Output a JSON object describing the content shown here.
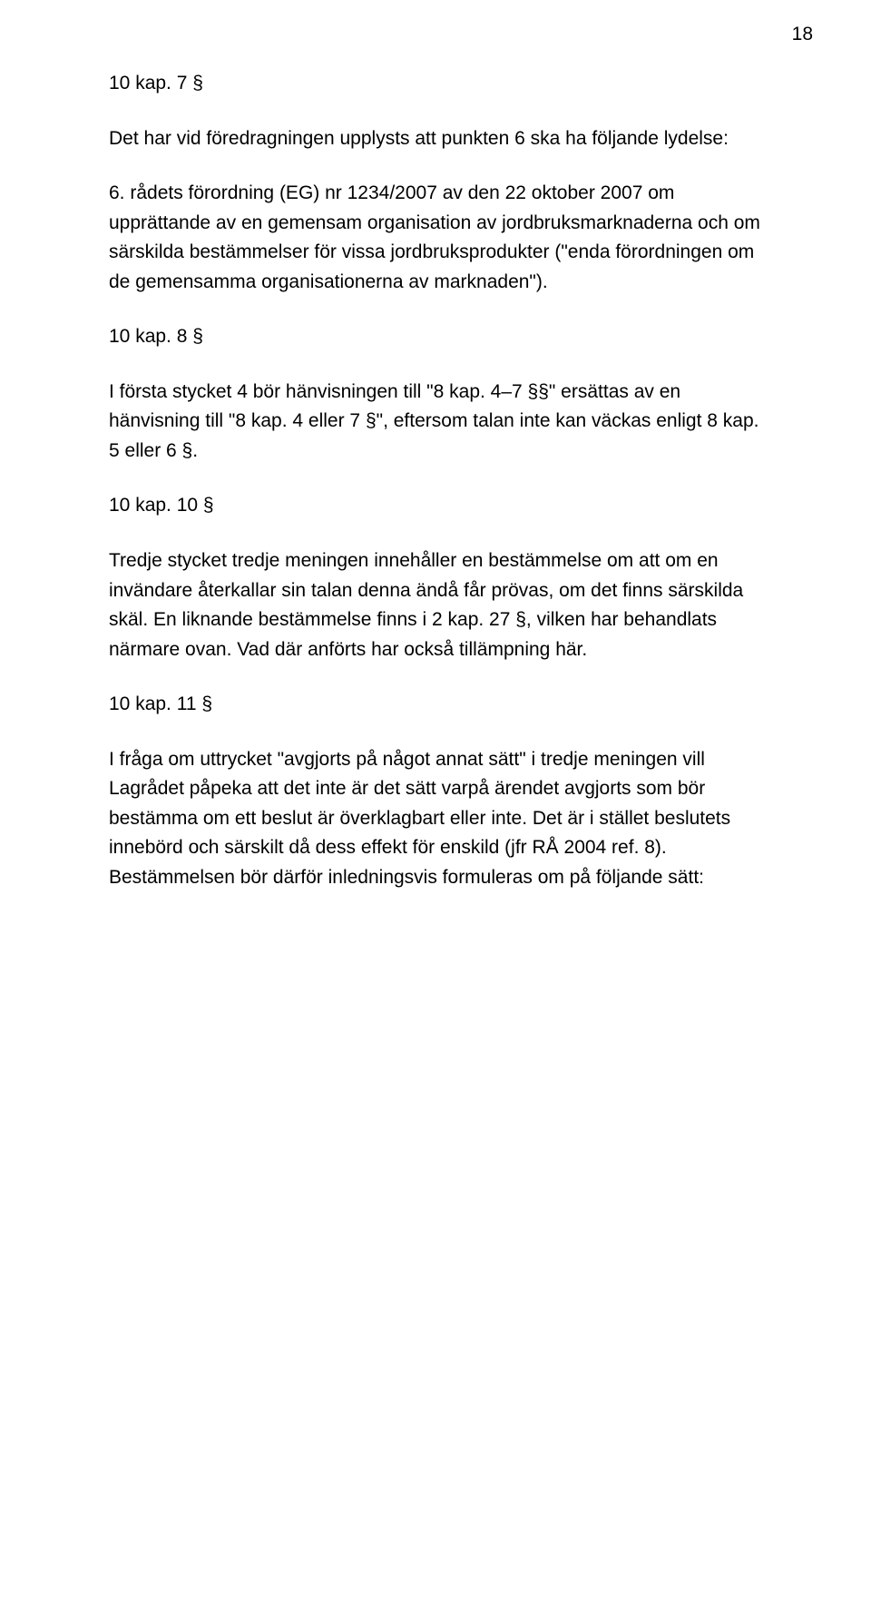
{
  "pageNumber": "18",
  "sections": [
    {
      "heading": "10 kap. 7 §",
      "paragraphs": [
        "Det har vid föredragningen upplysts att punkten 6 ska ha följande lydelse:",
        "6. rådets förordning (EG) nr 1234/2007 av den 22 oktober 2007 om upprättande av en gemensam organisation av jordbruksmarknaderna och om särskilda bestämmelser för vissa jordbruksprodukter (\"enda förordningen om de gemensamma organisationerna av marknaden\")."
      ]
    },
    {
      "heading": "10 kap. 8 §",
      "paragraphs": [
        "I första stycket 4 bör hänvisningen till \"8 kap. 4–7 §§\" ersättas av en hänvisning till \"8 kap. 4 eller 7 §\", eftersom talan inte kan väckas enligt 8 kap. 5 eller 6 §."
      ]
    },
    {
      "heading": "10 kap. 10 §",
      "paragraphs": [
        "Tredje stycket tredje meningen innehåller en bestämmelse om att om en invändare återkallar sin talan denna ändå får prövas, om det finns särskilda skäl. En liknande bestämmelse finns i 2 kap. 27 §, vilken har behandlats närmare ovan. Vad där anförts har också tillämpning här."
      ]
    },
    {
      "heading": "10 kap. 11 §",
      "paragraphs": [
        "I fråga om uttrycket \"avgjorts på något annat sätt\" i tredje meningen vill Lagrådet påpeka att det inte är det sätt varpå ärendet avgjorts som bör bestämma om ett beslut är överklagbart eller inte. Det är i stället beslutets innebörd och särskilt då dess effekt för enskild (jfr RÅ 2004 ref. 8). Bestämmelsen bör därför inledningsvis formuleras om på följande sätt:"
      ]
    }
  ]
}
